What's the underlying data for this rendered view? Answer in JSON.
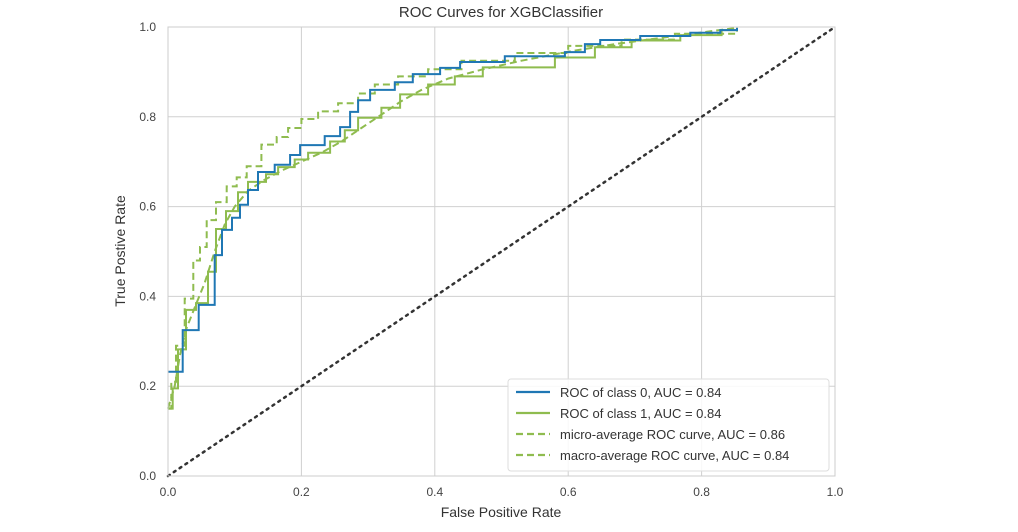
{
  "chart_data": {
    "type": "line",
    "title": "ROC Curves for XGBClassifier",
    "xlabel": "False Positive Rate",
    "ylabel": "True Postive Rate",
    "xlim": [
      0.0,
      1.0
    ],
    "ylim": [
      0.0,
      1.0
    ],
    "xticks": [
      "0.0",
      "0.2",
      "0.4",
      "0.6",
      "0.8",
      "1.0"
    ],
    "yticks": [
      "0.0",
      "0.2",
      "0.4",
      "0.6",
      "0.8",
      "1.0"
    ],
    "xtick_values": [
      0,
      0.2,
      0.4,
      0.6,
      0.8,
      1.0
    ],
    "ytick_values": [
      0,
      0.2,
      0.4,
      0.6,
      0.8,
      1.0
    ],
    "grid": true,
    "legend_position": "bottom-right",
    "series": [
      {
        "name": "ROC of class 0, AUC = 0.84",
        "color": "#1f77b4",
        "style": "solid",
        "x": [
          0.0,
          0.022,
          0.022,
          0.046,
          0.046,
          0.07,
          0.07,
          0.081,
          0.081,
          0.096,
          0.096,
          0.108,
          0.108,
          0.12,
          0.12,
          0.135,
          0.135,
          0.16,
          0.16,
          0.183,
          0.183,
          0.198,
          0.198,
          0.235,
          0.235,
          0.258,
          0.258,
          0.273,
          0.273,
          0.285,
          0.285,
          0.303,
          0.303,
          0.34,
          0.34,
          0.367,
          0.367,
          0.408,
          0.408,
          0.438,
          0.438,
          0.505,
          0.505,
          0.595,
          0.595,
          0.625,
          0.625,
          0.648,
          0.648,
          0.708,
          0.708,
          0.783,
          0.783,
          0.828,
          0.828,
          0.853,
          0.853
        ],
        "y": [
          0.232,
          0.232,
          0.325,
          0.325,
          0.381,
          0.381,
          0.492,
          0.492,
          0.548,
          0.548,
          0.575,
          0.575,
          0.604,
          0.604,
          0.637,
          0.637,
          0.677,
          0.677,
          0.693,
          0.693,
          0.715,
          0.715,
          0.737,
          0.737,
          0.757,
          0.757,
          0.777,
          0.777,
          0.811,
          0.811,
          0.837,
          0.837,
          0.86,
          0.86,
          0.877,
          0.877,
          0.895,
          0.895,
          0.909,
          0.909,
          0.922,
          0.922,
          0.935,
          0.935,
          0.944,
          0.944,
          0.962,
          0.962,
          0.971,
          0.971,
          0.98,
          0.98,
          0.987,
          0.987,
          0.993,
          0.993,
          0.998
        ]
      },
      {
        "name": "ROC of class 1, AUC = 0.84",
        "color": "#8fbc4f",
        "style": "solid",
        "x": [
          0.0,
          0.007,
          0.007,
          0.015,
          0.015,
          0.027,
          0.027,
          0.042,
          0.042,
          0.06,
          0.06,
          0.072,
          0.072,
          0.087,
          0.087,
          0.105,
          0.105,
          0.12,
          0.12,
          0.147,
          0.147,
          0.165,
          0.165,
          0.19,
          0.19,
          0.21,
          0.21,
          0.243,
          0.243,
          0.265,
          0.265,
          0.285,
          0.285,
          0.32,
          0.32,
          0.348,
          0.348,
          0.39,
          0.39,
          0.43,
          0.43,
          0.472,
          0.472,
          0.58,
          0.58,
          0.64,
          0.64,
          0.695,
          0.695,
          0.768,
          0.768,
          0.83,
          0.83,
          0.853,
          0.853
        ],
        "y": [
          0.15,
          0.15,
          0.195,
          0.195,
          0.282,
          0.282,
          0.37,
          0.37,
          0.385,
          0.385,
          0.455,
          0.455,
          0.55,
          0.55,
          0.59,
          0.59,
          0.632,
          0.632,
          0.655,
          0.655,
          0.672,
          0.672,
          0.688,
          0.688,
          0.705,
          0.705,
          0.72,
          0.72,
          0.745,
          0.745,
          0.77,
          0.77,
          0.798,
          0.798,
          0.82,
          0.82,
          0.85,
          0.85,
          0.872,
          0.872,
          0.89,
          0.89,
          0.91,
          0.91,
          0.932,
          0.932,
          0.955,
          0.955,
          0.97,
          0.97,
          0.982,
          0.982,
          0.993,
          0.993,
          0.998
        ]
      },
      {
        "name": "micro-average ROC curve, AUC = 0.86",
        "color": "#8fbc4f",
        "style": "dashed",
        "x": [
          0.0,
          0.005,
          0.005,
          0.012,
          0.012,
          0.025,
          0.025,
          0.038,
          0.038,
          0.048,
          0.048,
          0.058,
          0.058,
          0.072,
          0.072,
          0.088,
          0.088,
          0.103,
          0.103,
          0.118,
          0.118,
          0.14,
          0.14,
          0.163,
          0.163,
          0.18,
          0.18,
          0.2,
          0.2,
          0.225,
          0.225,
          0.255,
          0.255,
          0.285,
          0.285,
          0.31,
          0.31,
          0.345,
          0.345,
          0.39,
          0.39,
          0.44,
          0.44,
          0.52,
          0.52,
          0.6,
          0.6,
          0.68,
          0.68,
          0.76,
          0.76,
          0.853,
          0.853
        ],
        "y": [
          0.15,
          0.15,
          0.21,
          0.21,
          0.29,
          0.29,
          0.395,
          0.395,
          0.48,
          0.48,
          0.51,
          0.51,
          0.57,
          0.57,
          0.61,
          0.61,
          0.645,
          0.645,
          0.665,
          0.665,
          0.69,
          0.69,
          0.738,
          0.738,
          0.755,
          0.755,
          0.775,
          0.775,
          0.795,
          0.795,
          0.812,
          0.812,
          0.83,
          0.83,
          0.852,
          0.852,
          0.872,
          0.872,
          0.89,
          0.89,
          0.906,
          0.906,
          0.925,
          0.925,
          0.942,
          0.942,
          0.958,
          0.958,
          0.972,
          0.972,
          0.985,
          0.985,
          0.998
        ]
      },
      {
        "name": "macro-average ROC curve, AUC = 0.84",
        "color": "#8fbc4f",
        "style": "dashed",
        "x": [
          0.0,
          0.01,
          0.018,
          0.028,
          0.04,
          0.055,
          0.07,
          0.085,
          0.1,
          0.12,
          0.145,
          0.17,
          0.2,
          0.23,
          0.26,
          0.29,
          0.32,
          0.35,
          0.38,
          0.42,
          0.47,
          0.53,
          0.6,
          0.67,
          0.74,
          0.8,
          0.853
        ],
        "y": [
          0.15,
          0.2,
          0.27,
          0.33,
          0.375,
          0.43,
          0.5,
          0.56,
          0.6,
          0.635,
          0.66,
          0.68,
          0.7,
          0.72,
          0.745,
          0.775,
          0.805,
          0.835,
          0.86,
          0.885,
          0.905,
          0.925,
          0.945,
          0.962,
          0.976,
          0.988,
          0.998
        ]
      },
      {
        "name": "chance",
        "color": "#333333",
        "style": "dotted",
        "x": [
          0,
          1
        ],
        "y": [
          0,
          1
        ]
      }
    ],
    "legend": [
      {
        "label": "ROC of class 0, AUC = 0.84",
        "color": "#1f77b4",
        "style": "solid"
      },
      {
        "label": "ROC of class 1, AUC = 0.84",
        "color": "#8fbc4f",
        "style": "solid"
      },
      {
        "label": "micro-average ROC curve, AUC = 0.86",
        "color": "#8fbc4f",
        "style": "dashed"
      },
      {
        "label": "macro-average ROC curve, AUC = 0.84",
        "color": "#8fbc4f",
        "style": "dashed"
      }
    ]
  }
}
